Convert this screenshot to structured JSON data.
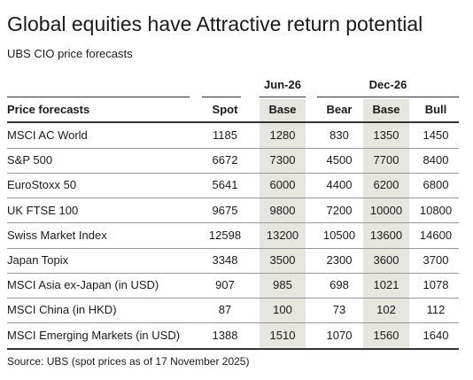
{
  "title": "Global equities have Attractive return potential",
  "subtitle": "UBS CIO price forecasts",
  "groups": {
    "jun": "Jun-26",
    "dec": "Dec-26"
  },
  "columns": {
    "label": "Price forecasts",
    "spot": "Spot",
    "jun_base": "Base",
    "bear": "Bear",
    "dec_base": "Base",
    "bull": "Bull"
  },
  "rows": [
    {
      "name": "MSCI AC World",
      "spot": "1185",
      "jun_base": "1280",
      "bear": "830",
      "dec_base": "1350",
      "bull": "1450"
    },
    {
      "name": "S&P 500",
      "spot": "6672",
      "jun_base": "7300",
      "bear": "4500",
      "dec_base": "7700",
      "bull": "8400"
    },
    {
      "name": "EuroStoxx 50",
      "spot": "5641",
      "jun_base": "6000",
      "bear": "4400",
      "dec_base": "6200",
      "bull": "6800"
    },
    {
      "name": "UK FTSE 100",
      "spot": "9675",
      "jun_base": "9800",
      "bear": "7200",
      "dec_base": "10000",
      "bull": "10800"
    },
    {
      "name": "Swiss Market Index",
      "spot": "12598",
      "jun_base": "13200",
      "bear": "10500",
      "dec_base": "13600",
      "bull": "14600"
    },
    {
      "name": "Japan Topix",
      "spot": "3348",
      "jun_base": "3500",
      "bear": "2300",
      "dec_base": "3600",
      "bull": "3700"
    },
    {
      "name": "MSCI Asia ex-Japan (in USD)",
      "spot": "907",
      "jun_base": "985",
      "bear": "698",
      "dec_base": "1021",
      "bull": "1078"
    },
    {
      "name": "MSCI China (in HKD)",
      "spot": "87",
      "jun_base": "100",
      "bear": "73",
      "dec_base": "102",
      "bull": "112"
    },
    {
      "name": "MSCI Emerging Markets (in USD)",
      "spot": "1388",
      "jun_base": "1510",
      "bear": "1070",
      "dec_base": "1560",
      "bull": "1640"
    }
  ],
  "source": "Source: UBS (spot prices as of 17 November 2025)",
  "colors": {
    "shade": "#e6e5e0",
    "rule": "#333333"
  }
}
